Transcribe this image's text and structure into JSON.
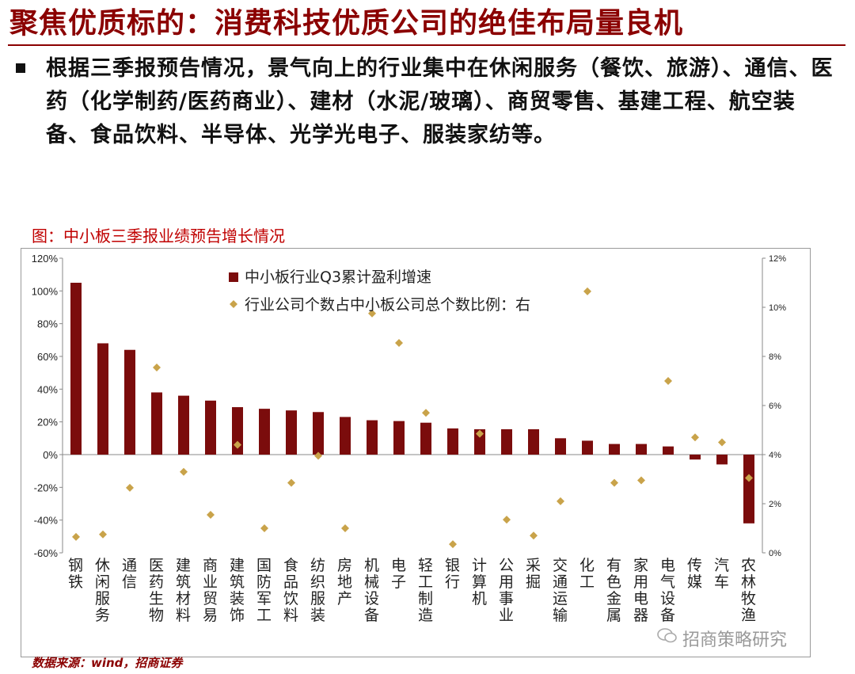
{
  "header": {
    "title": "聚焦优质标的：消费科技优质公司的绝佳布局量良机",
    "bullet": "根据三季报预告情况，景气向上的行业集中在休闲服务（餐饮、旅游）、通信、医药（化学制药/医药商业）、建材（水泥/玻璃）、商贸零售、基建工程、航空装备、食品饮料、半导体、光学光电子、服装家纺等。"
  },
  "figure_title": "图：中小板三季报业绩预告增长情况",
  "source": "数据来源：wind，招商证券",
  "watermark": "招商策略研究",
  "colors": {
    "bar": "#7b0c0c",
    "marker": "#c9a34a",
    "title": "#8b0000"
  },
  "chart_data": {
    "type": "bar",
    "categories": [
      "钢铁",
      "休闲服务",
      "通信",
      "医药生物",
      "建筑材料",
      "商业贸易",
      "建筑装饰",
      "国防军工",
      "食品饮料",
      "纺织服装",
      "房地产",
      "机械设备",
      "电子",
      "轻工制造",
      "银行",
      "计算机",
      "公用事业",
      "采掘",
      "交通运输",
      "化工",
      "有色金属",
      "家用电器",
      "电气设备",
      "传媒",
      "汽车",
      "农林牧渔"
    ],
    "category_display": [
      "钢铁",
      "休闲服务",
      "通信",
      "医药生物",
      "建筑材料",
      "商业贸易",
      "建筑装饰",
      "国防军工",
      "食品饮料",
      "纺织服装",
      "房地产",
      "机械设备",
      "电子",
      "轻工制造",
      "银行",
      "计算机",
      "公用事业",
      "采掘",
      "交通运输",
      "化工",
      "有色金属",
      "家用电器",
      "电气设备",
      "传媒",
      "汽车",
      "农林牧渔"
    ],
    "series": [
      {
        "name": "中小板行业Q3累计盈利增速",
        "axis": "left",
        "type": "bar",
        "values": [
          105,
          68,
          64,
          38,
          36,
          33,
          29,
          28,
          27,
          26,
          23,
          21,
          20.5,
          19.5,
          16,
          15.5,
          15.5,
          15.5,
          10,
          8.5,
          6.5,
          6.5,
          5,
          -3,
          -6,
          -42
        ]
      },
      {
        "name": "行业公司个数占中小板公司总个数比例：右",
        "axis": "right",
        "type": "scatter",
        "values": [
          0.65,
          0.75,
          2.65,
          7.55,
          3.3,
          1.55,
          4.4,
          1.0,
          2.85,
          3.95,
          1.0,
          9.75,
          8.55,
          5.7,
          0.35,
          4.85,
          1.35,
          0.7,
          2.1,
          10.65,
          2.85,
          2.95,
          7.0,
          4.7,
          4.5,
          3.05
        ]
      }
    ],
    "y_left": {
      "lim": [
        -60,
        120
      ],
      "ticks": [
        "120%",
        "100%",
        "80%",
        "60%",
        "40%",
        "20%",
        "0%",
        "-20%",
        "-40%",
        "-60%"
      ]
    },
    "y_right": {
      "lim": [
        0,
        12
      ],
      "ticks": [
        "12%",
        "10%",
        "8%",
        "6%",
        "4%",
        "2%",
        "0%"
      ]
    },
    "legend": [
      "中小板行业Q3累计盈利增速",
      "行业公司个数占中小板公司总个数比例：右"
    ],
    "legend_position": "top-center",
    "grid": false
  }
}
